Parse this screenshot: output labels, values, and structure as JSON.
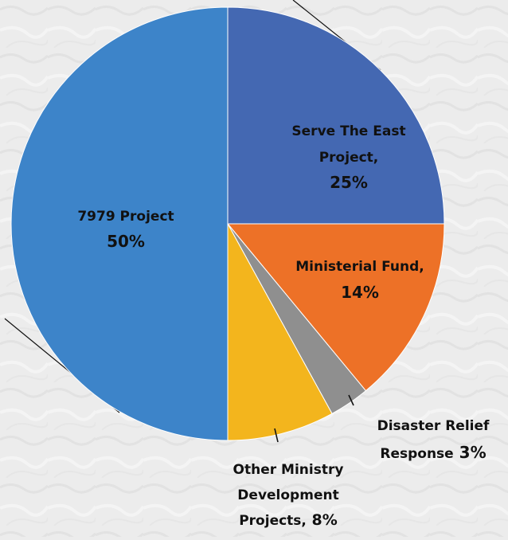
{
  "chart_data": {
    "type": "pie",
    "title": "",
    "slices": [
      {
        "name": "Serve The East Project",
        "value": 25,
        "label_lines": [
          "Serve The East",
          "Project,"
        ],
        "pct_label": "25%",
        "color": "#4468b2"
      },
      {
        "name": "Ministerial Fund",
        "value": 14,
        "label_lines": [
          "Ministerial Fund,"
        ],
        "pct_label": "14%",
        "color": "#ed7127"
      },
      {
        "name": "Disaster Relief Response",
        "value": 3,
        "label_lines": [
          "Disaster Relief",
          "Response"
        ],
        "pct_label": "3%",
        "color": "#8f8f8f"
      },
      {
        "name": "Other Ministry Development Projects",
        "value": 8,
        "label_lines": [
          "Other Ministry",
          "Development",
          "Projects,"
        ],
        "pct_label": "8%",
        "color": "#f3b51d"
      },
      {
        "name": "7979 Project",
        "value": 50,
        "label_lines": [
          "7979 Project"
        ],
        "pct_label": "50%",
        "color": "#3d84c9"
      }
    ],
    "legend": "none",
    "label_text_color": "#111111"
  }
}
